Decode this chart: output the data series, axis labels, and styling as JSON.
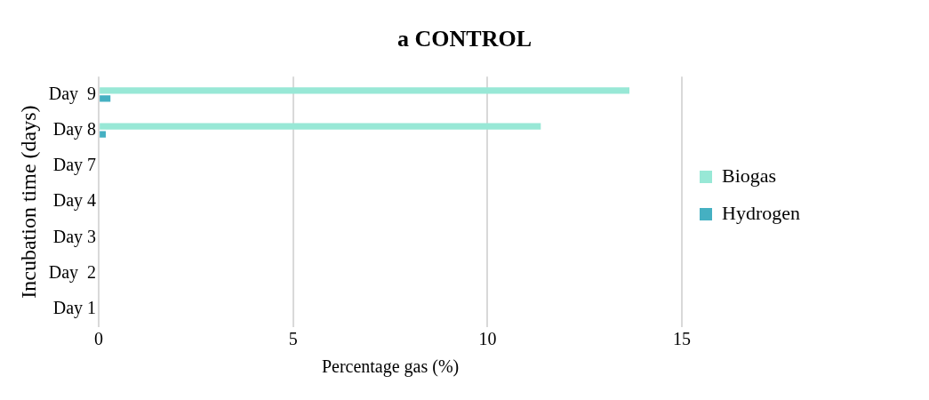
{
  "chart_data": {
    "type": "bar",
    "orientation": "horizontal",
    "title": "a CONTROL",
    "xlabel": "Percentage gas (%)",
    "ylabel": "Incubation time (days)",
    "categories": [
      "Day  9",
      "Day 8",
      "Day 7",
      "Day 4",
      "Day 3",
      "Day  2",
      "Day 1"
    ],
    "series": [
      {
        "name": "Biogas",
        "color": "#98e8d6",
        "values": [
          13.65,
          11.37,
          0,
          0,
          0,
          0,
          0
        ]
      },
      {
        "name": "Hydrogen",
        "color": "#45b0c2",
        "values": [
          0.3,
          0.18,
          0,
          0,
          0,
          0,
          0
        ]
      }
    ],
    "xlim": [
      0,
      15
    ],
    "xticks": [
      0,
      5,
      10,
      15
    ],
    "grid": "x",
    "legend": "right"
  }
}
